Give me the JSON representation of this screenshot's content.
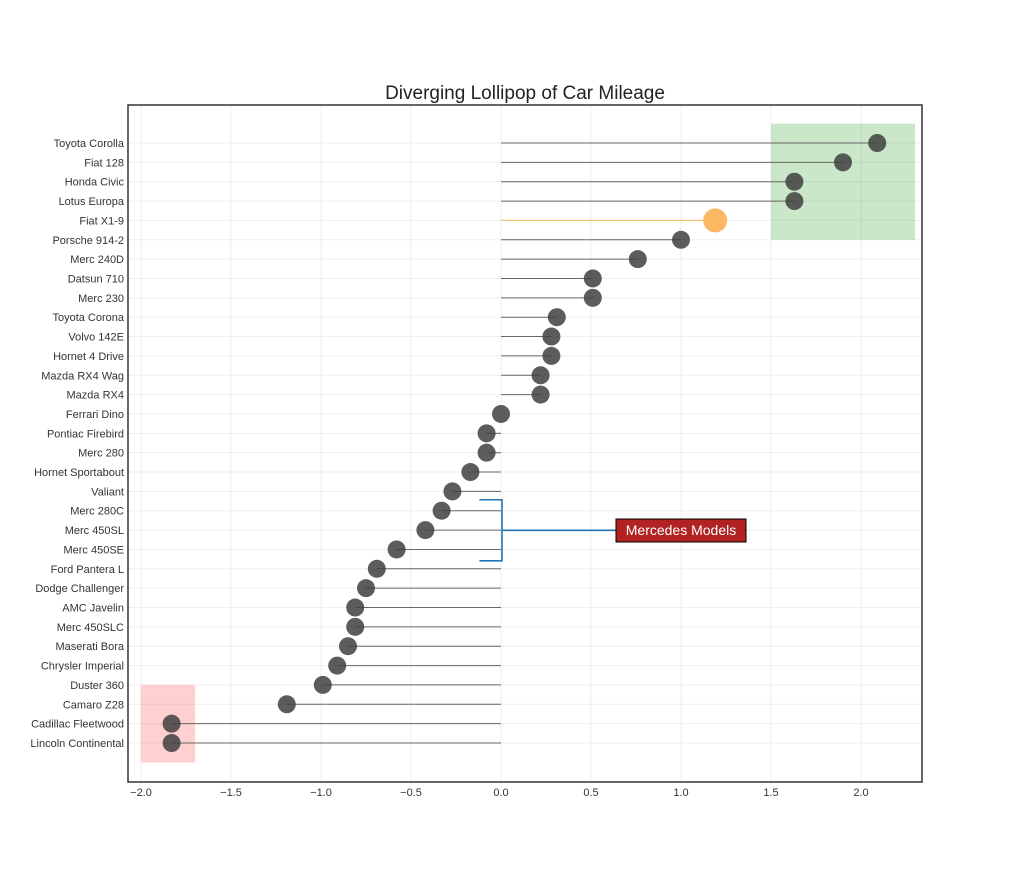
{
  "chart_data": {
    "type": "lollipop",
    "title": "Diverging Lollipop of Car Mileage",
    "xlabel": "",
    "ylabel": "",
    "xlim": [
      -2.05,
      2.35
    ],
    "grid": true,
    "xticks": [
      -2.0,
      -1.5,
      -1.0,
      -0.5,
      0.0,
      0.5,
      1.0,
      1.5,
      2.0
    ],
    "xtick_labels": [
      "−2.0",
      "−1.5",
      "−1.0",
      "−0.5",
      "0.0",
      "0.5",
      "1.0",
      "1.5",
      "2.0"
    ],
    "categories": [
      "Toyota Corolla",
      "Fiat 128",
      "Honda Civic",
      "Lotus Europa",
      "Fiat X1-9",
      "Porsche 914-2",
      "Merc 240D",
      "Datsun 710",
      "Merc 230",
      "Toyota Corona",
      "Volvo 142E",
      "Hornet 4 Drive",
      "Mazda RX4 Wag",
      "Mazda RX4",
      "Ferrari Dino",
      "Pontiac Firebird",
      "Merc 280",
      "Hornet Sportabout",
      "Valiant",
      "Merc 280C",
      "Merc 450SL",
      "Merc 450SE",
      "Ford Pantera L",
      "Dodge Challenger",
      "AMC Javelin",
      "Merc 450SLC",
      "Maserati Bora",
      "Chrysler Imperial",
      "Duster 360",
      "Camaro Z28",
      "Cadillac Fleetwood",
      "Lincoln Continental"
    ],
    "values": [
      2.09,
      1.9,
      1.63,
      1.63,
      1.19,
      1.0,
      0.76,
      0.51,
      0.51,
      0.31,
      0.28,
      0.28,
      0.22,
      0.22,
      0.0,
      -0.08,
      -0.08,
      -0.17,
      -0.27,
      -0.33,
      -0.42,
      -0.58,
      -0.69,
      -0.75,
      -0.81,
      -0.81,
      -0.85,
      -0.91,
      -0.99,
      -1.19,
      -1.83,
      -1.83
    ],
    "highlight": {
      "category": "Fiat X1-9",
      "color": "#fdb863"
    },
    "point_color": "#404040",
    "regions": [
      {
        "x": [
          1.5,
          2.3
        ],
        "rows": [
          "Toyota Corolla",
          "Fiat X1-9"
        ],
        "color": "#2ca02c"
      },
      {
        "x": [
          -2.0,
          -1.7
        ],
        "rows": [
          "Camaro Z28",
          "Lincoln Continental"
        ],
        "color": "#ff4444"
      }
    ],
    "annotation": {
      "text": "Mercedes Models",
      "bg_color": "#b22222",
      "line_color": "#1f77b4",
      "rows": [
        "Merc 280C",
        "Ford Pantera L"
      ]
    }
  }
}
